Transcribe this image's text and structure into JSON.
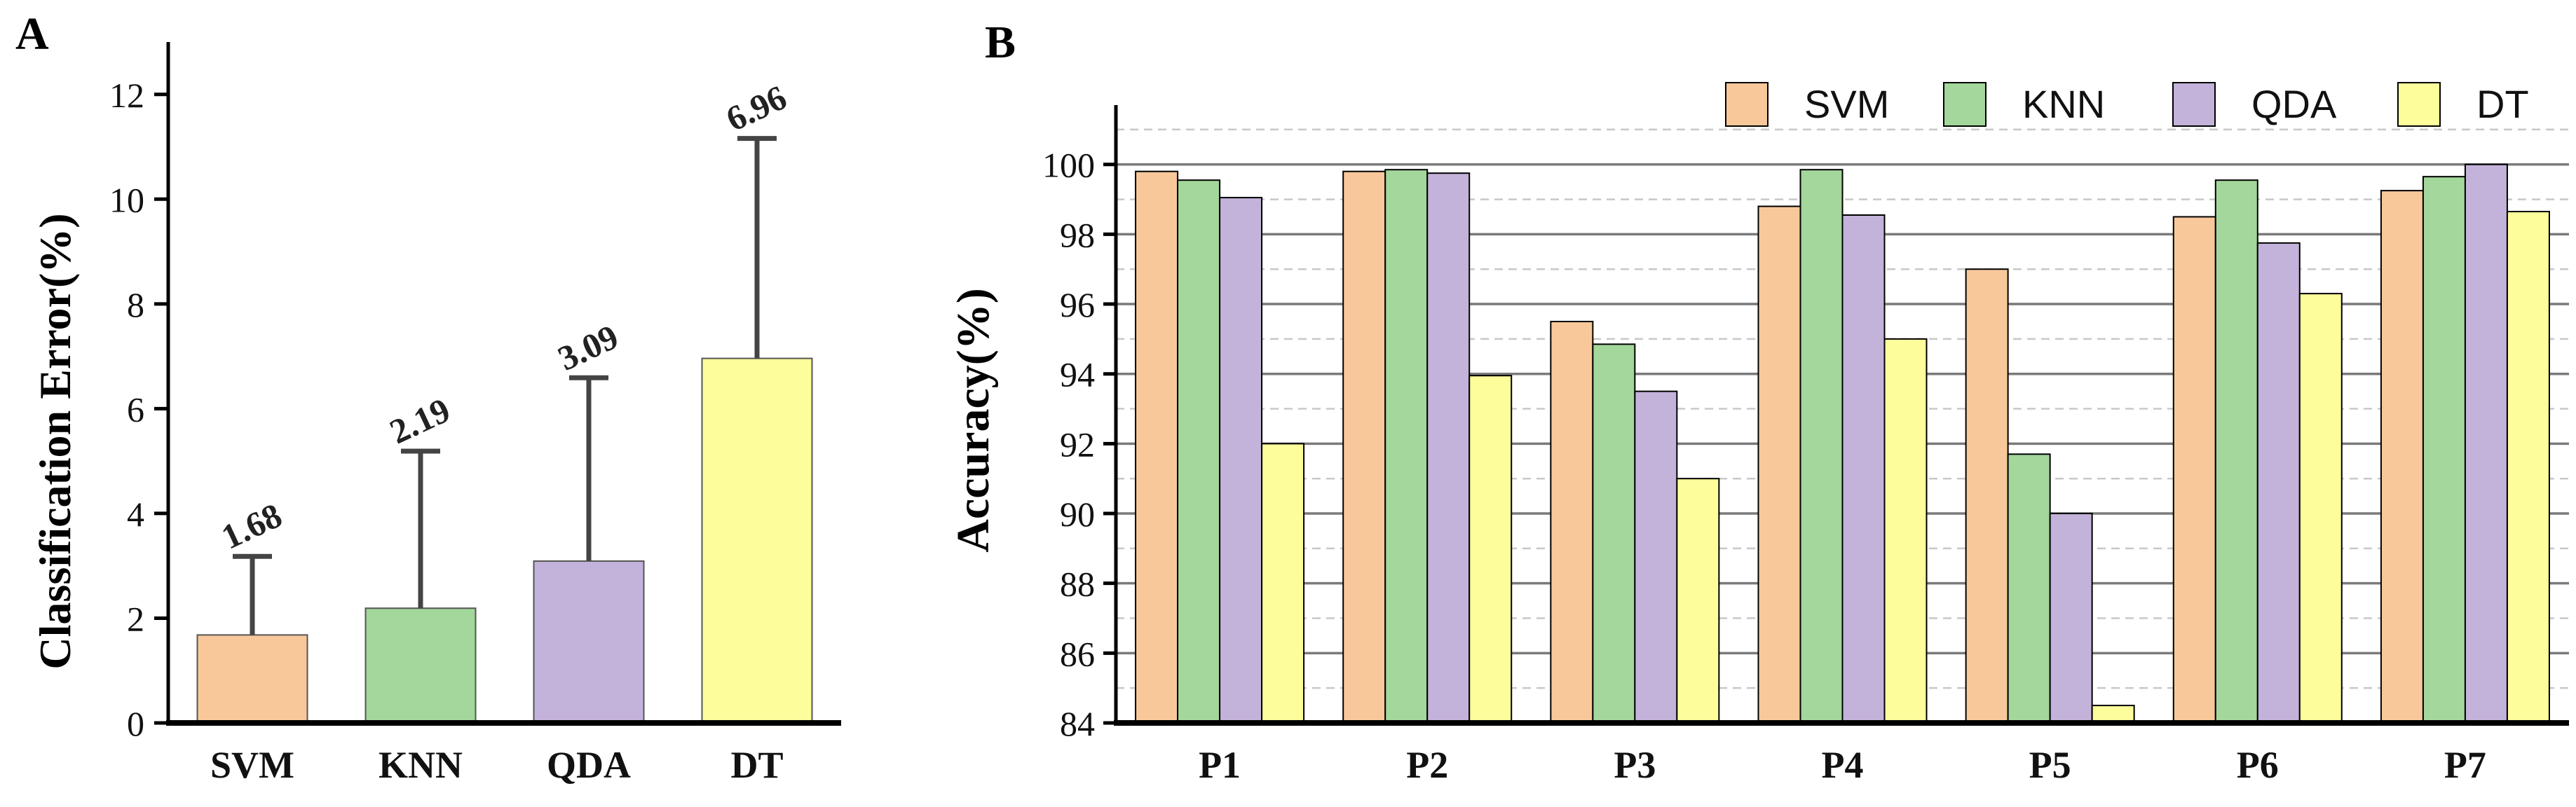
{
  "panels": {
    "a_label": "A",
    "b_label": "B"
  },
  "colors": {
    "SVM": "#f8c89a",
    "KNN": "#a3d79b",
    "QDA": "#c3b2d9",
    "DT": "#fdfd9c"
  },
  "chart_data": [
    {
      "type": "bar",
      "title": "",
      "xlabel": "",
      "ylabel": "Classification Error(%)",
      "categories": [
        "SVM",
        "KNN",
        "QDA",
        "DT"
      ],
      "values": [
        1.68,
        2.19,
        3.09,
        6.96
      ],
      "value_labels": [
        "1.68",
        "2.19",
        "3.09",
        "6.96"
      ],
      "error_upper": [
        1.5,
        3.0,
        3.5,
        4.2
      ],
      "ylim": [
        0,
        13
      ],
      "yticks": [
        0,
        2,
        4,
        6,
        8,
        10,
        12
      ],
      "grid": false
    },
    {
      "type": "bar",
      "title": "",
      "xlabel": "",
      "ylabel": "Accuracy(%)",
      "categories": [
        "P1",
        "P2",
        "P3",
        "P4",
        "P5",
        "P6",
        "P7"
      ],
      "series": [
        {
          "name": "SVM",
          "values": [
            99.8,
            99.8,
            95.5,
            98.8,
            97.0,
            98.5,
            99.25
          ]
        },
        {
          "name": "KNN",
          "values": [
            99.55,
            99.85,
            94.85,
            99.85,
            91.7,
            99.55,
            99.65
          ]
        },
        {
          "name": "QDA",
          "values": [
            99.05,
            99.75,
            93.5,
            98.55,
            90.0,
            97.75,
            100.0
          ]
        },
        {
          "name": "DT",
          "values": [
            92.0,
            93.95,
            91.0,
            95.0,
            84.5,
            96.3,
            98.65
          ]
        }
      ],
      "ylim": [
        84,
        101.5
      ],
      "yticks": [
        84,
        86,
        88,
        90,
        92,
        94,
        96,
        98,
        100
      ],
      "grid": true,
      "legend_position": "top-right"
    }
  ]
}
